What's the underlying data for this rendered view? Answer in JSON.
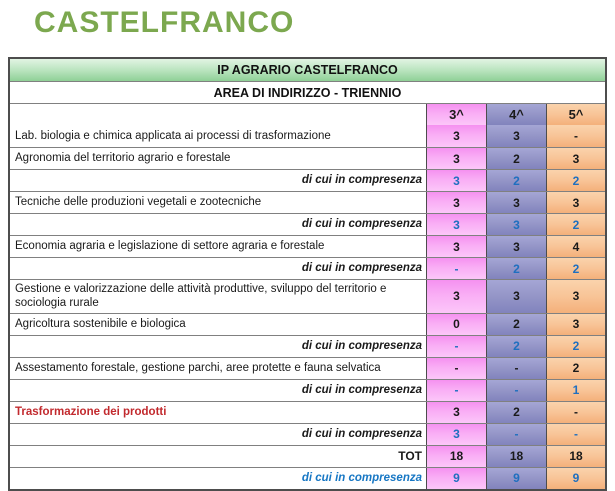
{
  "logo": {
    "text": "CASTELFRANCO"
  },
  "table": {
    "title": "IP AGRARIO CASTELFRANCO",
    "subtitle": "AREA DI INDIRIZZO - TRIENNIO",
    "columns": [
      "3^",
      "4^",
      "5^"
    ],
    "rows": [
      {
        "type": "subject",
        "label": "Lab. biologia e chimica applicata ai processi di trasformazione",
        "values": [
          "3",
          "3",
          "-"
        ]
      },
      {
        "type": "subject",
        "label": "Agronomia del territorio agrario e forestale",
        "values": [
          "3",
          "2",
          "3"
        ]
      },
      {
        "type": "compresenza",
        "label": "di cui in compresenza",
        "values": [
          "3",
          "2",
          "2"
        ]
      },
      {
        "type": "subject",
        "label": "Tecniche delle produzioni vegetali e zootecniche",
        "values": [
          "3",
          "3",
          "3"
        ]
      },
      {
        "type": "compresenza",
        "label": "di cui in compresenza",
        "values": [
          "3",
          "3",
          "2"
        ]
      },
      {
        "type": "subject",
        "label": "Economia agraria e legislazione di settore agraria e forestale",
        "values": [
          "3",
          "3",
          "4"
        ]
      },
      {
        "type": "compresenza",
        "label": "di cui in compresenza",
        "values": [
          "-",
          "2",
          "2"
        ]
      },
      {
        "type": "subject",
        "label": "Gestione e valorizzazione delle attività produttive, sviluppo del territorio e sociologia rurale",
        "values": [
          "3",
          "3",
          "3"
        ]
      },
      {
        "type": "subject",
        "label": "Agricoltura sostenibile e biologica",
        "values": [
          "0",
          "2",
          "3"
        ]
      },
      {
        "type": "compresenza",
        "label": "di cui in compresenza",
        "values": [
          "-",
          "2",
          "2"
        ]
      },
      {
        "type": "subject",
        "label": "Assestamento forestale, gestione parchi, aree protette e fauna selvatica",
        "values": [
          "-",
          "-",
          "2"
        ]
      },
      {
        "type": "compresenza",
        "label": "di cui in compresenza",
        "values": [
          "-",
          "-",
          "1"
        ]
      },
      {
        "type": "subject-red",
        "label": "Trasformazione dei prodotti",
        "values": [
          "3",
          "2",
          "-"
        ]
      },
      {
        "type": "compresenza",
        "label": "di cui in compresenza",
        "values": [
          "3",
          "-",
          "-"
        ]
      },
      {
        "type": "total",
        "label": "TOT",
        "values": [
          "18",
          "18",
          "18"
        ]
      },
      {
        "type": "total-compresenza",
        "label": "di cui in compresenza",
        "values": [
          "9",
          "9",
          "9"
        ]
      }
    ]
  },
  "colors": {
    "logo_green": "#7CA84F",
    "header_green": "#b7e3bc",
    "col_3_pink": "#f9aef5",
    "col_4_purple": "#9495c7",
    "col_5_orange": "#f8c497",
    "compresenza_blue": "#1f6fbf",
    "subject_red": "#c22a2e"
  }
}
